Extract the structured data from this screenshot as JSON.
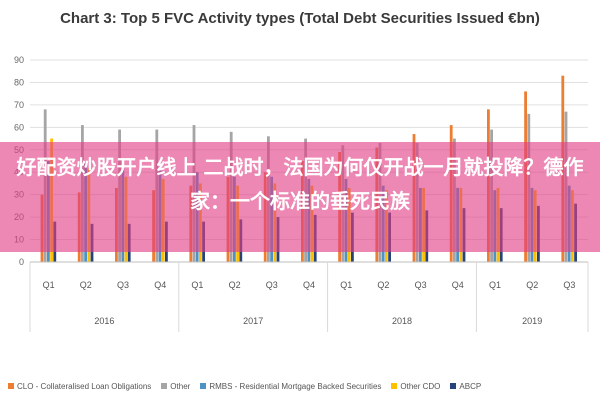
{
  "chart_data": {
    "type": "bar",
    "title": "Chart 3: Top 5 FVC Activity types (Total Debt Securities Issued €bn)",
    "xlabel": "",
    "ylabel": "",
    "ylim": [
      0,
      90
    ],
    "y_ticks": [
      0,
      10,
      20,
      30,
      40,
      50,
      60,
      70,
      80,
      90
    ],
    "grid": true,
    "legend_position": "bottom",
    "categories": [
      "Q1",
      "Q2",
      "Q3",
      "Q4",
      "Q1",
      "Q2",
      "Q3",
      "Q4",
      "Q1",
      "Q2",
      "Q3",
      "Q4",
      "Q1",
      "Q2",
      "Q3"
    ],
    "year_groups": [
      {
        "label": "2016",
        "count": 4
      },
      {
        "label": "2017",
        "count": 4
      },
      {
        "label": "2018",
        "count": 4
      },
      {
        "label": "2019",
        "count": 3
      }
    ],
    "series": [
      {
        "name": "CLO - Collateralised Loan Obligations",
        "color": "#ed7d31",
        "values": [
          30,
          31,
          33,
          32,
          34,
          38,
          40,
          45,
          49,
          51,
          57,
          61,
          68,
          76,
          83
        ]
      },
      {
        "name": "Other",
        "color": "#a5a5a5",
        "values": [
          68,
          61,
          59,
          59,
          61,
          58,
          56,
          55,
          52,
          53,
          53,
          55,
          59,
          66,
          67
        ]
      },
      {
        "name": "RMBS - Residential Mortgage Backed Securities",
        "color": "#4d94c4",
        "values": [
          45,
          44,
          42,
          42,
          40,
          38,
          38,
          37,
          37,
          34,
          33,
          33,
          32,
          33,
          34
        ]
      },
      {
        "name": "Other CDO",
        "color": "#ffc000",
        "values": [
          55,
          42,
          38,
          37,
          35,
          34,
          35,
          34,
          33,
          32,
          33,
          33,
          33,
          32,
          32
        ]
      },
      {
        "name": "ABCP",
        "color": "#264478",
        "values": [
          18,
          17,
          17,
          18,
          18,
          19,
          20,
          21,
          22,
          22,
          23,
          24,
          24,
          25,
          26
        ]
      }
    ]
  },
  "overlay": {
    "text": "好配资炒股开户线上 二战时，法国为何仅开战一月就投降？德作家：一个标准的垂死民族",
    "color": "#e23e86"
  }
}
